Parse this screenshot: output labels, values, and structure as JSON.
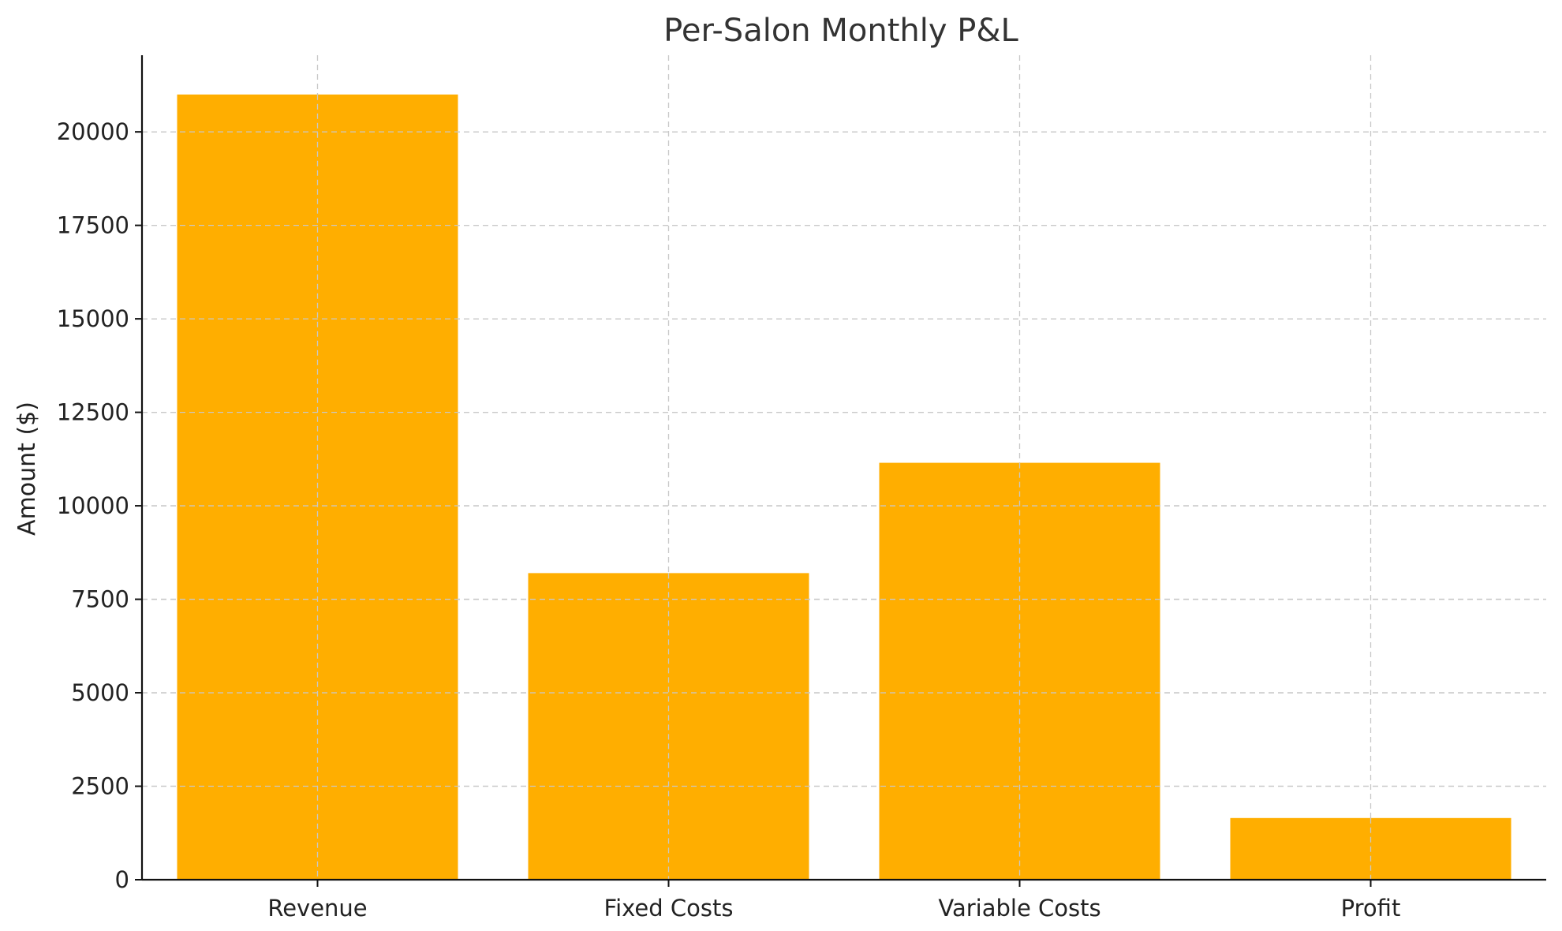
{
  "chart_data": {
    "type": "bar",
    "title": "Per-Salon Monthly P&L",
    "xlabel": "",
    "ylabel": "Amount ($)",
    "categories": [
      "Revenue",
      "Fixed Costs",
      "Variable Costs",
      "Profit"
    ],
    "values": [
      21000,
      8200,
      11150,
      1650
    ],
    "ylim": [
      0,
      22050
    ],
    "yticks": [
      0,
      2500,
      5000,
      7500,
      10000,
      12500,
      15000,
      17500,
      20000
    ],
    "bar_color": "#ffae00",
    "grid": true,
    "grid_style": "dashed",
    "legend": "none"
  }
}
